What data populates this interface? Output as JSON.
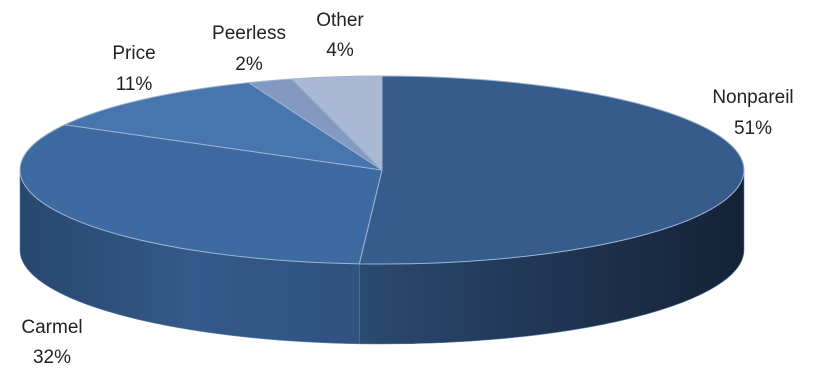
{
  "chart_data": {
    "type": "pie",
    "title": "",
    "legend": "none",
    "slices": [
      {
        "label": "Nonpareil",
        "value": 51,
        "display": "51%",
        "color": "#365C8B"
      },
      {
        "label": "Carmel",
        "value": 32,
        "display": "32%",
        "color": "#3D6AA1"
      },
      {
        "label": "Price",
        "value": 11,
        "display": "11%",
        "color": "#4776AE"
      },
      {
        "label": "Peerless",
        "value": 2,
        "display": "2%",
        "color": "#8499C0"
      },
      {
        "label": "Other",
        "value": 4,
        "display": "4%",
        "color": "#A9B8D3"
      }
    ]
  }
}
